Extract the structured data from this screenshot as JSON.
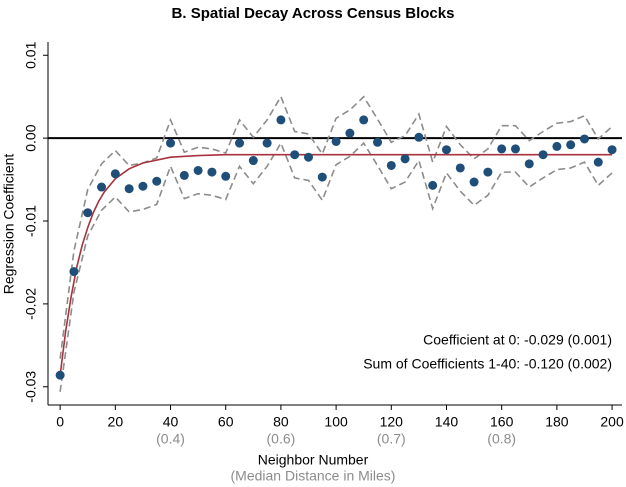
{
  "chart_data": {
    "type": "scatter",
    "title": "B. Spatial Decay Across Census Blocks",
    "x_label": "Neighbor Number",
    "x_sublabel": "(Median Distance in Miles)",
    "y_label": "Regression Coefficient",
    "annotations": [
      "Coefficient at 0: -0.029 (0.001)",
      "Sum of Coefficients 1-40: -0.120 (0.002)"
    ],
    "xlim": [
      -4.4,
      203.6
    ],
    "ylim": [
      -0.0322,
      0.0116
    ],
    "xticks": [
      0,
      20,
      40,
      60,
      80,
      100,
      120,
      140,
      160,
      180,
      200
    ],
    "secondary_xticks": [
      {
        "value": 40,
        "label": "(0.4)"
      },
      {
        "value": 80,
        "label": "(0.6)"
      },
      {
        "value": 120,
        "label": "(0.7)"
      },
      {
        "value": 160,
        "label": "(0.8)"
      }
    ],
    "yticks": [
      {
        "value": 0.01,
        "label": "0.01"
      },
      {
        "value": 0,
        "label": "0.00"
      },
      {
        "value": -0.01,
        "label": "-0.01"
      },
      {
        "value": -0.02,
        "label": "-0.02"
      },
      {
        "value": -0.03,
        "label": "-0.03"
      }
    ],
    "zero_line": true,
    "x": [
      0,
      5,
      10,
      15,
      20,
      25,
      30,
      35,
      40,
      45,
      50,
      55,
      60,
      65,
      70,
      75,
      80,
      85,
      90,
      95,
      100,
      105,
      110,
      115,
      120,
      125,
      130,
      135,
      140,
      145,
      150,
      155,
      160,
      165,
      170,
      175,
      180,
      185,
      190,
      195,
      200
    ],
    "series": [
      {
        "style": "dot",
        "color": "#1f4e79",
        "values": [
          -0.0286,
          -0.0161,
          -0.009,
          -0.0059,
          -0.0043,
          -0.0061,
          -0.0058,
          -0.0052,
          -0.0006,
          -0.0045,
          -0.0039,
          -0.0041,
          -0.0046,
          -0.0006,
          -0.0027,
          -0.0006,
          0.0022,
          -0.002,
          -0.0023,
          -0.0047,
          -0.0004,
          0.0006,
          0.0022,
          -0.0005,
          -0.0033,
          -0.0025,
          0.0001,
          -0.0057,
          -0.0014,
          -0.0036,
          -0.0053,
          -0.0041,
          -0.0013,
          -0.0013,
          -0.0031,
          -0.002,
          -0.001,
          -0.0008,
          -0.0001,
          -0.0029,
          -0.0014
        ]
      },
      {
        "style": "dashed",
        "color": "#8c8c8c",
        "values": [
          -0.0266,
          -0.0136,
          -0.0062,
          -0.0031,
          -0.0015,
          -0.0033,
          -0.003,
          -0.0024,
          0.0022,
          -0.0017,
          -0.0011,
          -0.0013,
          -0.0018,
          0.0022,
          0.0001,
          0.0022,
          0.005,
          0.0008,
          0.0005,
          -0.0019,
          0.0024,
          0.0034,
          0.005,
          0.0023,
          -0.0005,
          0.0003,
          0.0029,
          -0.0029,
          0.0014,
          -0.0008,
          -0.0025,
          -0.0013,
          0.0015,
          0.0015,
          -0.0003,
          0.0008,
          0.0018,
          0.002,
          0.0027,
          -0.0001,
          0.0014
        ]
      },
      {
        "style": "dashed",
        "color": "#8c8c8c",
        "values": [
          -0.0306,
          -0.0186,
          -0.0118,
          -0.0087,
          -0.0071,
          -0.0089,
          -0.0086,
          -0.008,
          -0.0034,
          -0.0073,
          -0.0067,
          -0.0069,
          -0.0074,
          -0.0034,
          -0.0055,
          -0.0034,
          -0.0006,
          -0.0048,
          -0.0051,
          -0.0075,
          -0.0032,
          -0.0022,
          -0.0006,
          -0.0033,
          -0.0061,
          -0.0053,
          -0.0027,
          -0.0085,
          -0.0042,
          -0.0064,
          -0.0081,
          -0.0069,
          -0.0041,
          -0.0041,
          -0.0059,
          -0.0048,
          -0.0038,
          -0.0036,
          -0.0029,
          -0.0057,
          -0.0042
        ]
      }
    ],
    "fit": {
      "color": "#a8323e",
      "x": [
        0,
        2,
        4,
        6,
        8,
        10,
        12,
        14,
        16,
        20,
        25,
        30,
        40,
        50,
        60,
        80,
        100,
        200
      ],
      "values": [
        -0.0286,
        -0.0233,
        -0.0191,
        -0.0156,
        -0.0129,
        -0.0108,
        -0.009,
        -0.0076,
        -0.0065,
        -0.0049,
        -0.0037,
        -0.003,
        -0.0023,
        -0.0021,
        -0.002,
        -0.002,
        -0.002,
        -0.002
      ]
    }
  }
}
